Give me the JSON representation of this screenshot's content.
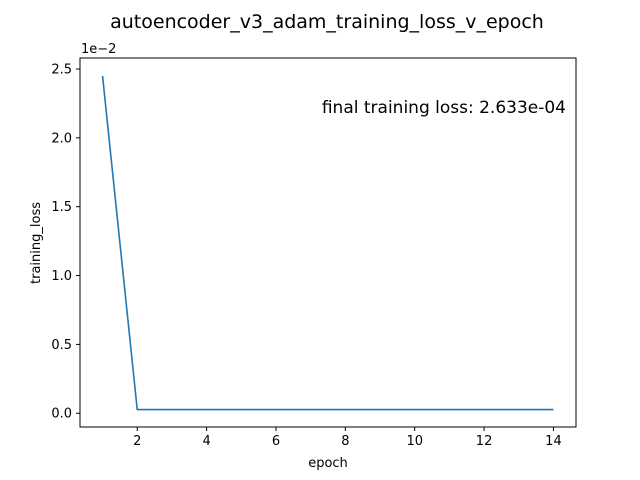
{
  "chart_data": {
    "type": "line",
    "title": "autoencoder_v3_adam_training_loss_v_epoch",
    "xlabel": "epoch",
    "ylabel": "training_loss",
    "y_offset_label": "1e−2",
    "annotation": "final training loss: 2.633e-04",
    "xlim": [
      0.35,
      14.65
    ],
    "ylim": [
      -0.1,
      2.58
    ],
    "x_ticks": [
      2,
      4,
      6,
      8,
      10,
      12,
      14
    ],
    "x_tick_labels": [
      "2",
      "4",
      "6",
      "8",
      "10",
      "12",
      "14"
    ],
    "y_ticks": [
      0.0,
      0.5,
      1.0,
      1.5,
      2.0,
      2.5
    ],
    "y_tick_labels": [
      "0.0",
      "0.5",
      "1.0",
      "1.5",
      "2.0",
      "2.5"
    ],
    "grid": false,
    "series": [
      {
        "color": "#1f77b4",
        "x": [
          1,
          2,
          3,
          4,
          5,
          6,
          7,
          8,
          9,
          10,
          11,
          12,
          13,
          14
        ],
        "y": [
          2.45,
          0.0263,
          0.0263,
          0.0263,
          0.0263,
          0.0263,
          0.0263,
          0.0263,
          0.0263,
          0.0263,
          0.0263,
          0.0263,
          0.0263,
          0.02633
        ]
      }
    ]
  }
}
